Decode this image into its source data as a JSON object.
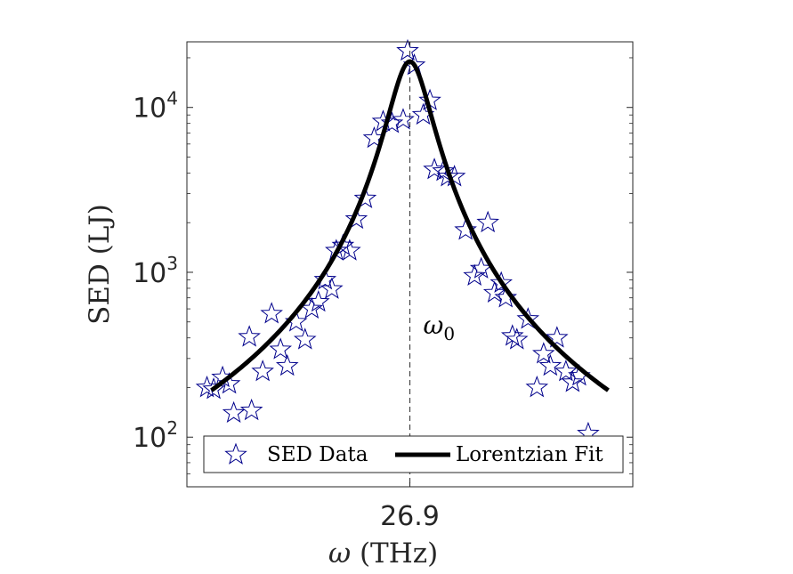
{
  "chart_data": {
    "type": "scatter",
    "xlabel_symbol": "ω",
    "xlabel_unit": "(THz)",
    "ylabel": "SED (LJ)",
    "y_scale": "log",
    "ylim": [
      50,
      25000
    ],
    "xlim": [
      -1,
      1
    ],
    "x_ticks": [
      {
        "value": 0,
        "label": "26.9"
      }
    ],
    "y_ticks": [
      {
        "value": 100,
        "base": "10",
        "exp": "2"
      },
      {
        "value": 1000,
        "base": "10",
        "exp": "3"
      },
      {
        "value": 10000,
        "base": "10",
        "exp": "4"
      }
    ],
    "center_line": {
      "x": 0,
      "label_symbol": "ω",
      "label_sub": "0"
    },
    "legend_position": "bottom",
    "series": [
      {
        "name": "SED Data",
        "kind": "scatter",
        "marker": "star",
        "color": "#00008b",
        "points": [
          [
            -0.91,
            200
          ],
          [
            -0.88,
            195
          ],
          [
            -0.84,
            230
          ],
          [
            -0.81,
            210
          ],
          [
            -0.79,
            140
          ],
          [
            -0.72,
            405
          ],
          [
            -0.71,
            145
          ],
          [
            -0.66,
            250
          ],
          [
            -0.62,
            560
          ],
          [
            -0.58,
            340
          ],
          [
            -0.55,
            270
          ],
          [
            -0.51,
            500
          ],
          [
            -0.47,
            390
          ],
          [
            -0.44,
            600
          ],
          [
            -0.41,
            660
          ],
          [
            -0.38,
            900
          ],
          [
            -0.35,
            790
          ],
          [
            -0.33,
            1350
          ],
          [
            -0.3,
            1450
          ],
          [
            -0.27,
            1350
          ],
          [
            -0.24,
            2100
          ],
          [
            -0.2,
            2800
          ],
          [
            -0.16,
            6500
          ],
          [
            -0.12,
            8200
          ],
          [
            -0.08,
            8000
          ],
          [
            -0.03,
            8400
          ],
          [
            -0.01,
            22000
          ],
          [
            0.02,
            18000
          ],
          [
            0.06,
            9000
          ],
          [
            0.09,
            11000
          ],
          [
            0.11,
            4200
          ],
          [
            0.15,
            4100
          ],
          [
            0.17,
            3800
          ],
          [
            0.2,
            3800
          ],
          [
            0.25,
            1800
          ],
          [
            0.29,
            950
          ],
          [
            0.32,
            1050
          ],
          [
            0.35,
            2000
          ],
          [
            0.38,
            750
          ],
          [
            0.41,
            860
          ],
          [
            0.43,
            700
          ],
          [
            0.46,
            410
          ],
          [
            0.48,
            390
          ],
          [
            0.53,
            520
          ],
          [
            0.57,
            200
          ],
          [
            0.6,
            320
          ],
          [
            0.63,
            270
          ],
          [
            0.66,
            400
          ],
          [
            0.7,
            250
          ],
          [
            0.73,
            215
          ],
          [
            0.76,
            235
          ],
          [
            0.8,
            105
          ]
        ]
      },
      {
        "name": "Lorentzian Fit",
        "kind": "line",
        "color": "#000000",
        "model": {
          "peak": 19000,
          "gamma": 0.09,
          "center": 0,
          "x_from": -0.89,
          "x_to": 0.89
        }
      }
    ]
  }
}
